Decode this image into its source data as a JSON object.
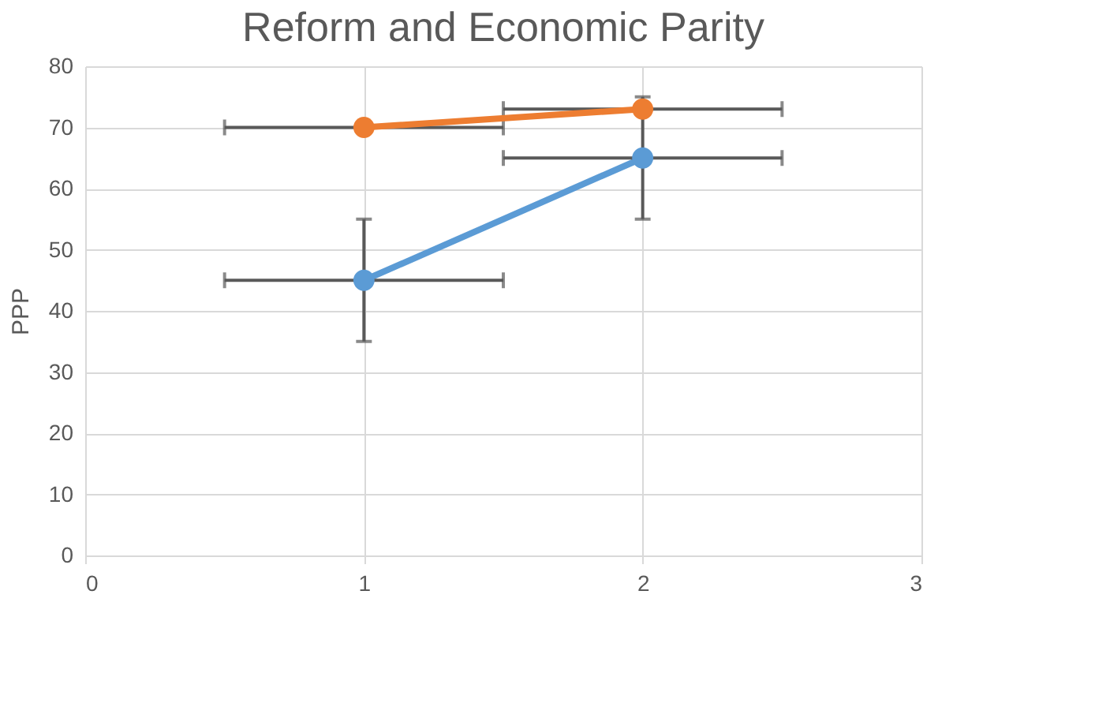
{
  "chart_data": {
    "type": "line",
    "title": "Reform and Economic Parity",
    "ylabel": "PPP",
    "x": [
      1,
      2
    ],
    "series": [
      {
        "color": "#5b9bd5",
        "values": [
          45,
          65
        ],
        "errors": [
          10,
          10
        ],
        "xerrors": [
          0.5,
          0.5
        ]
      },
      {
        "color": "#ed7d31",
        "values": [
          70,
          73
        ],
        "xerrors": [
          0.5,
          0.5
        ]
      }
    ],
    "xlim": [
      0,
      3
    ],
    "xticks": [
      0,
      1,
      2,
      3
    ],
    "ylim": [
      0,
      80
    ],
    "yticks": [
      0,
      10,
      20,
      30,
      40,
      50,
      60,
      70,
      80
    ],
    "grid": true,
    "legend": false,
    "marker": "circle",
    "line_style": "solid"
  }
}
